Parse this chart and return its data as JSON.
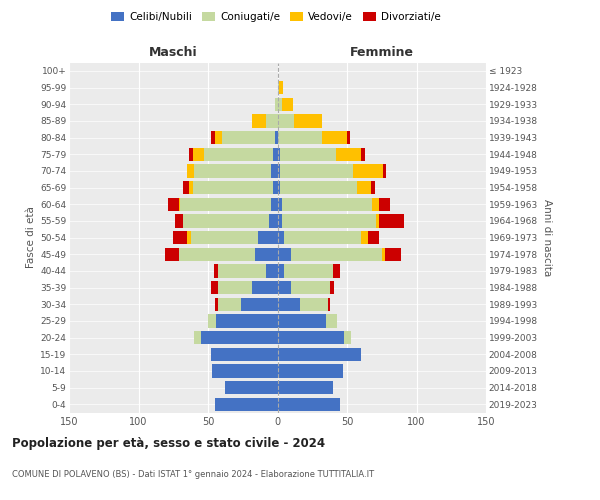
{
  "age_groups": [
    "0-4",
    "5-9",
    "10-14",
    "15-19",
    "20-24",
    "25-29",
    "30-34",
    "35-39",
    "40-44",
    "45-49",
    "50-54",
    "55-59",
    "60-64",
    "65-69",
    "70-74",
    "75-79",
    "80-84",
    "85-89",
    "90-94",
    "95-99",
    "100+"
  ],
  "birth_years": [
    "2019-2023",
    "2014-2018",
    "2009-2013",
    "2004-2008",
    "1999-2003",
    "1994-1998",
    "1989-1993",
    "1984-1988",
    "1979-1983",
    "1974-1978",
    "1969-1973",
    "1964-1968",
    "1959-1963",
    "1954-1958",
    "1949-1953",
    "1944-1948",
    "1939-1943",
    "1934-1938",
    "1929-1933",
    "1924-1928",
    "≤ 1923"
  ],
  "males": {
    "celibi": [
      45,
      38,
      47,
      48,
      55,
      44,
      26,
      18,
      8,
      16,
      14,
      6,
      5,
      3,
      5,
      3,
      2,
      0,
      0,
      0,
      0
    ],
    "coniugati": [
      0,
      0,
      0,
      0,
      5,
      6,
      17,
      25,
      35,
      55,
      48,
      62,
      65,
      58,
      55,
      50,
      38,
      8,
      2,
      0,
      0
    ],
    "vedovi": [
      0,
      0,
      0,
      0,
      0,
      0,
      0,
      0,
      0,
      0,
      3,
      0,
      1,
      3,
      5,
      8,
      5,
      10,
      0,
      0,
      0
    ],
    "divorziati": [
      0,
      0,
      0,
      0,
      0,
      0,
      2,
      5,
      3,
      10,
      10,
      6,
      8,
      4,
      0,
      3,
      3,
      0,
      0,
      0,
      0
    ]
  },
  "females": {
    "nubili": [
      45,
      40,
      47,
      60,
      48,
      35,
      16,
      10,
      5,
      10,
      5,
      3,
      3,
      2,
      2,
      2,
      0,
      0,
      0,
      0,
      0
    ],
    "coniugate": [
      0,
      0,
      0,
      0,
      5,
      8,
      20,
      28,
      35,
      65,
      55,
      68,
      65,
      55,
      52,
      40,
      32,
      12,
      3,
      1,
      0
    ],
    "vedove": [
      0,
      0,
      0,
      0,
      0,
      0,
      0,
      0,
      0,
      2,
      5,
      2,
      5,
      10,
      22,
      18,
      18,
      20,
      8,
      3,
      0
    ],
    "divorziate": [
      0,
      0,
      0,
      0,
      0,
      0,
      2,
      3,
      5,
      12,
      8,
      18,
      8,
      3,
      2,
      3,
      2,
      0,
      0,
      0,
      0
    ]
  },
  "colors": {
    "celibi": "#4472c4",
    "coniugati": "#c5d9a0",
    "vedovi": "#ffc000",
    "divorziati": "#cc0000"
  },
  "xlim": 150,
  "title": "Popolazione per età, sesso e stato civile - 2024",
  "subtitle": "COMUNE DI POLAVENO (BS) - Dati ISTAT 1° gennaio 2024 - Elaborazione TUTTITALIA.IT",
  "xlabel_left": "Maschi",
  "xlabel_right": "Femmine",
  "ylabel_left": "Fasce di età",
  "ylabel_right": "Anni di nascita",
  "background_color": "#ffffff",
  "plot_bg_color": "#ebebeb",
  "grid_color": "#ffffff"
}
